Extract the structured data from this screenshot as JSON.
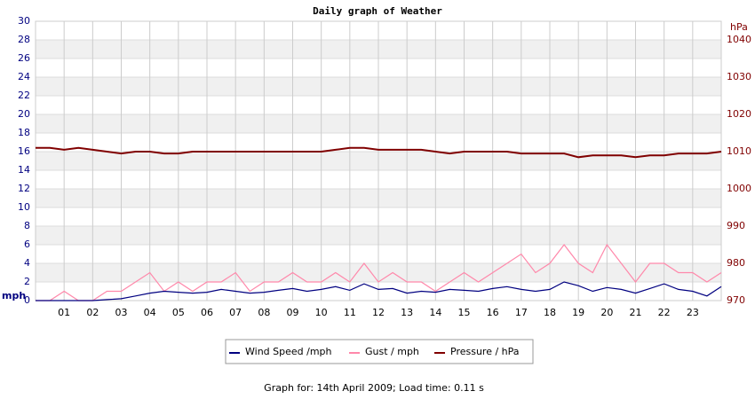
{
  "chart_data": {
    "type": "line",
    "title": "Daily graph of Weather",
    "x": [
      0,
      0.5,
      1,
      1.5,
      2,
      2.5,
      3,
      3.5,
      4,
      4.5,
      5,
      5.5,
      6,
      6.5,
      7,
      7.5,
      8,
      8.5,
      9,
      9.5,
      10,
      10.5,
      11,
      11.5,
      12,
      12.5,
      13,
      13.5,
      14,
      14.5,
      15,
      15.5,
      16,
      16.5,
      17,
      17.5,
      18,
      18.5,
      19,
      19.5,
      20,
      20.5,
      21,
      21.5,
      22,
      22.5,
      23,
      23.5,
      24
    ],
    "xlim": [
      0,
      24
    ],
    "xticks": [
      {
        "value": 1,
        "label": "01"
      },
      {
        "value": 2,
        "label": "02"
      },
      {
        "value": 3,
        "label": "03"
      },
      {
        "value": 4,
        "label": "04"
      },
      {
        "value": 5,
        "label": "05"
      },
      {
        "value": 6,
        "label": "06"
      },
      {
        "value": 7,
        "label": "07"
      },
      {
        "value": 8,
        "label": "08"
      },
      {
        "value": 9,
        "label": "09"
      },
      10,
      11,
      12,
      13,
      14,
      15,
      16,
      17,
      18,
      19,
      20,
      21,
      22,
      23
    ],
    "ylim": [
      0,
      30
    ],
    "yticks": [
      0,
      2,
      4,
      6,
      8,
      10,
      12,
      14,
      16,
      18,
      20,
      22,
      24,
      26,
      28,
      30
    ],
    "y2lim": [
      970,
      1045
    ],
    "y2ticks": [
      970,
      980,
      990,
      1000,
      1010,
      1020,
      1030,
      1040
    ],
    "ylabel": "mph",
    "y2label": "hPa",
    "grid": true,
    "series": [
      {
        "name": "Wind Speed /mph",
        "color": "#000080",
        "values": [
          0,
          0,
          0,
          0,
          0,
          0.1,
          0.2,
          0.5,
          0.8,
          1.0,
          0.9,
          0.8,
          0.9,
          1.2,
          1.0,
          0.8,
          0.9,
          1.1,
          1.3,
          1.0,
          1.2,
          1.5,
          1.1,
          1.8,
          1.2,
          1.3,
          0.8,
          1.0,
          0.9,
          1.2,
          1.1,
          1.0,
          1.3,
          1.5,
          1.2,
          1.0,
          1.2,
          2.0,
          1.6,
          1.0,
          1.4,
          1.2,
          0.8,
          1.3,
          1.8,
          1.2,
          1.0,
          0.5,
          1.5
        ]
      },
      {
        "name": "Gust / mph",
        "color": "#ff88aa",
        "values": [
          0,
          0,
          1,
          0,
          0,
          1,
          1,
          2,
          3,
          1,
          2,
          1,
          2,
          2,
          3,
          1,
          2,
          2,
          3,
          2,
          2,
          3,
          2,
          4,
          2,
          3,
          2,
          2,
          1,
          2,
          3,
          2,
          3,
          4,
          5,
          3,
          4,
          6,
          4,
          3,
          6,
          4,
          2,
          4,
          4,
          3,
          3,
          2,
          3
        ]
      },
      {
        "name": "Pressure / hPa",
        "color": "#800000",
        "axis": "y2",
        "values": [
          1011,
          1011,
          1010.5,
          1011,
          1010.5,
          1010,
          1009.5,
          1010,
          1010,
          1009.5,
          1009.5,
          1010,
          1010,
          1010,
          1010,
          1010,
          1010,
          1010,
          1010,
          1010,
          1010,
          1010.5,
          1011,
          1011,
          1010.5,
          1010.5,
          1010.5,
          1010.5,
          1010,
          1009.5,
          1010,
          1010,
          1010,
          1010,
          1009.5,
          1009.5,
          1009.5,
          1009.5,
          1008.5,
          1009,
          1009,
          1009,
          1008.5,
          1009,
          1009,
          1009.5,
          1009.5,
          1009.5,
          1010
        ]
      }
    ]
  },
  "footer": "Graph for: 14th April 2009; Load time: 0.11 s"
}
